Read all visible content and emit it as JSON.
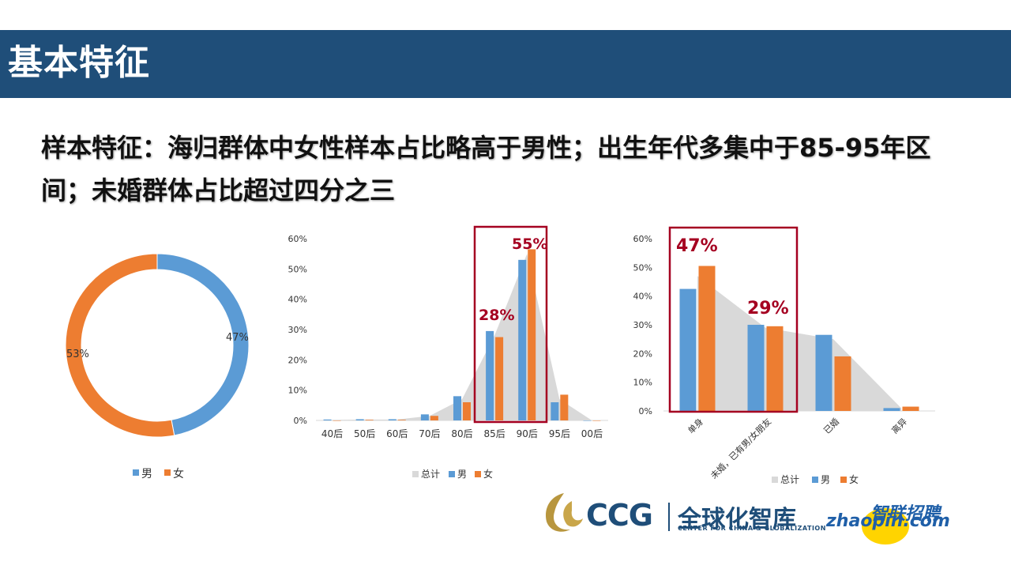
{
  "header": {
    "title": "基本特征"
  },
  "subtitle": "样本特征：海归群体中女性样本占比略高于男性；出生年代多集中于85-95年区间；未婚群体占比超过四分之三",
  "colors": {
    "male": "#5b9bd5",
    "female": "#ed7d31",
    "total": "#d9d9d9",
    "highlight": "#a50021",
    "banner": "#1f4e79"
  },
  "chart_data": [
    {
      "type": "pie",
      "subtype": "donut",
      "categories": [
        "男",
        "女"
      ],
      "values": [
        47,
        53
      ],
      "data_labels": [
        "47%",
        "53%"
      ],
      "legend": [
        "男",
        "女"
      ],
      "legend_position": "bottom"
    },
    {
      "type": "bar",
      "categories": [
        "40后",
        "50后",
        "60后",
        "70后",
        "80后",
        "85后",
        "90后",
        "95后",
        "00后"
      ],
      "series": [
        {
          "name": "总计",
          "type": "area",
          "values": [
            0.2,
            0.3,
            0.3,
            1.5,
            7,
            28,
            55,
            7,
            0
          ]
        },
        {
          "name": "男",
          "values": [
            0.3,
            0.4,
            0.4,
            2,
            8,
            29.5,
            53,
            6,
            0
          ]
        },
        {
          "name": "女",
          "values": [
            0,
            0.2,
            0.2,
            1.5,
            6,
            27.5,
            56.5,
            8.5,
            0
          ]
        }
      ],
      "y_ticks": [
        "60%",
        "50%",
        "40%",
        "30%",
        "20%",
        "10%",
        "0%"
      ],
      "ylim": [
        0,
        60
      ],
      "annotations": [
        "28%",
        "55%"
      ],
      "highlight_categories": [
        "85后",
        "90后"
      ],
      "legend": [
        "总计",
        "男",
        "女"
      ],
      "legend_position": "bottom"
    },
    {
      "type": "bar",
      "categories": [
        "单身",
        "未婚，已有男/女朋友",
        "已婚",
        "离异"
      ],
      "series": [
        {
          "name": "总计",
          "type": "area",
          "values": [
            47,
            29,
            25,
            1
          ]
        },
        {
          "name": "男",
          "values": [
            42.5,
            30,
            26.5,
            1
          ]
        },
        {
          "name": "女",
          "values": [
            50.5,
            29.5,
            19,
            1.5
          ]
        }
      ],
      "y_ticks": [
        "60%",
        "50%",
        "40%",
        "30%",
        "20%",
        "10%",
        "0%"
      ],
      "ylim": [
        0,
        60
      ],
      "annotations": [
        "47%",
        "29%"
      ],
      "highlight_categories": [
        "单身",
        "未婚，已有男/女朋友"
      ],
      "legend": [
        "总计",
        "男",
        "女"
      ],
      "legend_position": "bottom"
    }
  ],
  "footer": {
    "ccg": "CCG",
    "ccg_cn": "全球化智库",
    "ccg_en": "CENTER FOR CHINA & GLOBALIZATION",
    "zhaopin_cn": "智联招聘",
    "zhaopin_en": "zhaopin.com"
  }
}
